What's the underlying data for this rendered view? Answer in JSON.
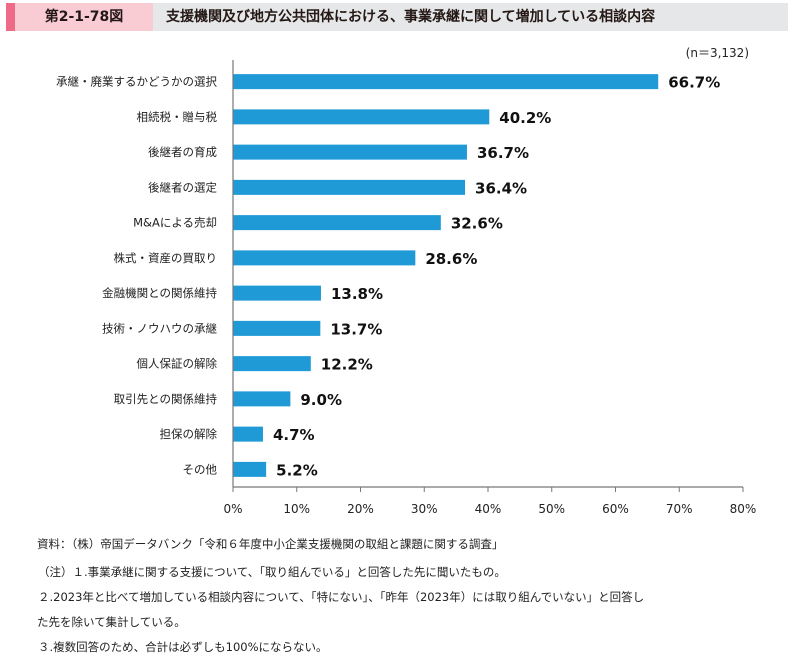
{
  "header": {
    "figure_number": "第2-1-78図",
    "title": "支援機関及び地方公共団体における、事業承継に関して増加している相談内容",
    "colors": {
      "accent": "#ee6a86",
      "number_bg": "#f9ccd3",
      "title_bg": "#e6e7e8"
    }
  },
  "chart_data": {
    "type": "bar",
    "orientation": "horizontal",
    "title": "支援機関及び地方公共団体における、事業承継に関して増加している相談内容",
    "sample_size": "(n＝3,132)",
    "categories": [
      "承継・廃業するかどうかの選択",
      "相続税・贈与税",
      "後継者の育成",
      "後継者の選定",
      "M&Aによる売却",
      "株式・資産の買取り",
      "金融機関との関係維持",
      "技術・ノウハウの承継",
      "個人保証の解除",
      "取引先との関係維持",
      "担保の解除",
      "その他"
    ],
    "values": [
      66.7,
      40.2,
      36.7,
      36.4,
      32.6,
      28.6,
      13.8,
      13.7,
      12.2,
      9.0,
      4.7,
      5.2
    ],
    "value_labels": [
      "66.7%",
      "40.2%",
      "36.7%",
      "36.4%",
      "32.6%",
      "28.6%",
      "13.8%",
      "13.7%",
      "12.2%",
      "9.0%",
      "4.7%",
      "5.2%"
    ],
    "xlim": [
      0,
      80
    ],
    "xticks": [
      0,
      10,
      20,
      30,
      40,
      50,
      60,
      70,
      80
    ],
    "xtick_labels": [
      "0%",
      "10%",
      "20%",
      "30%",
      "40%",
      "50%",
      "60%",
      "70%",
      "80%"
    ],
    "xlabel": "",
    "ylabel": "",
    "grid": false,
    "bar_color": "#1f9ad6"
  },
  "notes": {
    "source": "資料：（株）帝国データバンク「令和６年度中小企業支援機関の取組と課題に関する調査」",
    "note1": "（注）１.事業承継に関する支援について、「取り組んでいる」と回答した先に聞いたもの。",
    "note2a": "２.2023年と比べて増加している相談内容について、「特にない」、「昨年（2023年）には取り組んでいない」と回答し",
    "note2b": "た先を除いて集計している。",
    "note3": "３.複数回答のため、合計は必ずしも100%にならない。"
  }
}
